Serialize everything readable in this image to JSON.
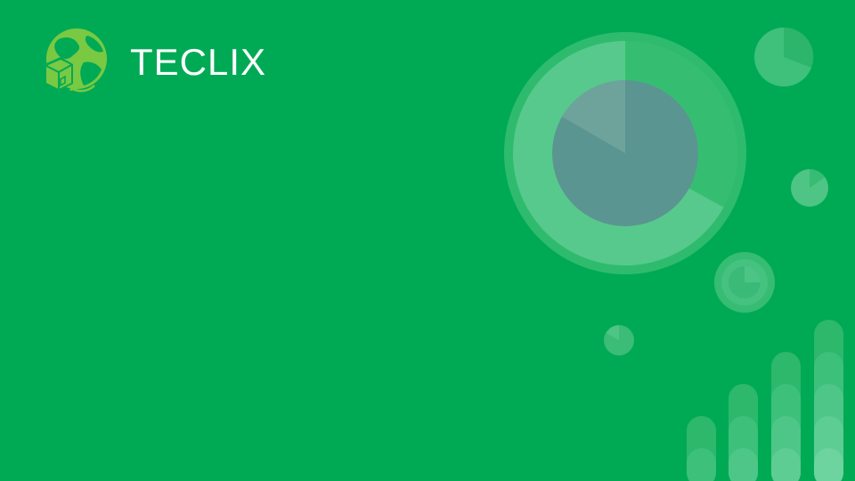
{
  "brand": {
    "name": "TECLIX",
    "logo_icon": "globe-box-icon"
  },
  "theme": {
    "background": "#00aa55",
    "logo_green": "#7ac943",
    "text": "#ffffff"
  },
  "decor": {
    "main_pie": {
      "highlight_fraction": 0.67
    },
    "pies": [
      {
        "name": "top-right-pie",
        "fraction": 0.15
      },
      {
        "name": "small-pie",
        "fraction": 0.12
      },
      {
        "name": "ring-pie",
        "fraction": 0.25
      },
      {
        "name": "tiny-pie",
        "fraction": 0.1
      }
    ],
    "bars": [
      {
        "name": "bar-1",
        "rows": 2
      },
      {
        "name": "bar-2",
        "rows": 3
      },
      {
        "name": "bar-3",
        "rows": 4
      },
      {
        "name": "bar-4",
        "rows": 5
      }
    ]
  }
}
